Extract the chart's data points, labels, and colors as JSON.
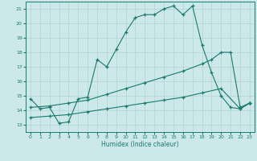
{
  "xlabel": "Humidex (Indice chaleur)",
  "xlim": [
    -0.5,
    23.5
  ],
  "ylim": [
    12.5,
    21.5
  ],
  "xticks": [
    0,
    1,
    2,
    3,
    4,
    5,
    6,
    7,
    8,
    9,
    10,
    11,
    12,
    13,
    14,
    15,
    16,
    17,
    18,
    19,
    20,
    21,
    22,
    23
  ],
  "yticks": [
    13,
    14,
    15,
    16,
    17,
    18,
    19,
    20,
    21
  ],
  "bg_color": "#cce8e8",
  "line_color": "#1a7a6e",
  "grid_color": "#b0d4d4",
  "line1_x": [
    0,
    1,
    2,
    3,
    4,
    5,
    6,
    7,
    8,
    9,
    10,
    11,
    12,
    13,
    14,
    15,
    16,
    17,
    18,
    19,
    20,
    21,
    22,
    23
  ],
  "line1_y": [
    14.8,
    14.1,
    14.2,
    13.1,
    13.2,
    14.8,
    14.9,
    17.5,
    17.0,
    18.2,
    19.4,
    20.4,
    20.6,
    20.6,
    21.0,
    21.2,
    20.6,
    21.2,
    18.5,
    16.6,
    15.0,
    14.2,
    14.1,
    14.5
  ],
  "line2_x": [
    0,
    2,
    4,
    6,
    8,
    10,
    12,
    14,
    16,
    18,
    19,
    20,
    21,
    22,
    23
  ],
  "line2_y": [
    14.2,
    14.3,
    14.5,
    14.7,
    15.1,
    15.5,
    15.9,
    16.3,
    16.7,
    17.2,
    17.5,
    18.0,
    18.0,
    14.2,
    14.5
  ],
  "line3_x": [
    0,
    2,
    4,
    6,
    8,
    10,
    12,
    14,
    16,
    18,
    20,
    22,
    23
  ],
  "line3_y": [
    13.5,
    13.6,
    13.7,
    13.9,
    14.1,
    14.3,
    14.5,
    14.7,
    14.9,
    15.2,
    15.5,
    14.1,
    14.5
  ]
}
